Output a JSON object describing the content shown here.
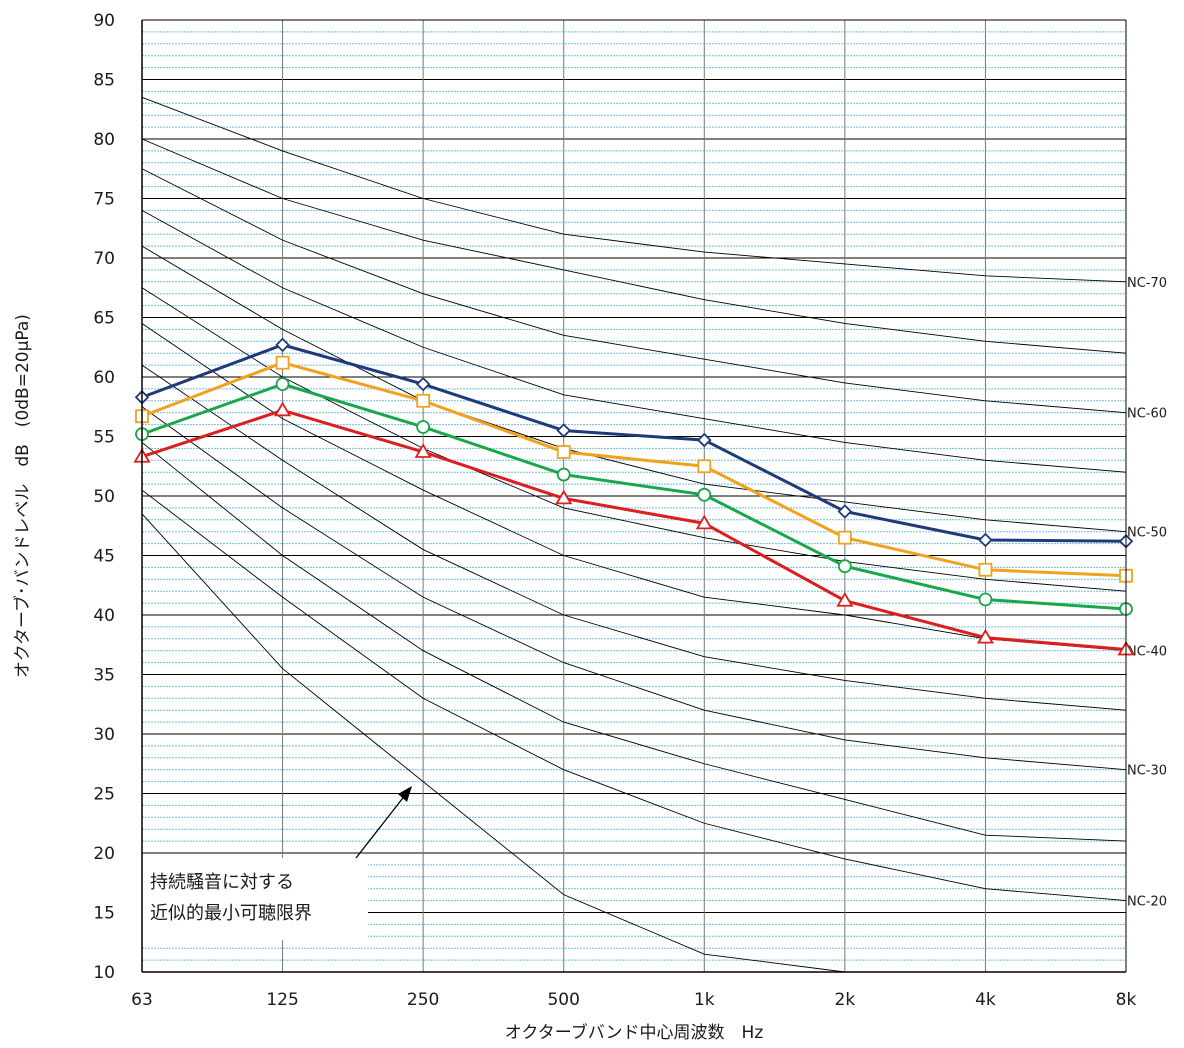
{
  "chart_data": {
    "type": "line",
    "xlabel": "オクターブバンド中心周波数　Hz",
    "ylabel": "オクターブ･バンドレベル　dB　(0dB=20μPa)",
    "categories": [
      "63",
      "125",
      "250",
      "500",
      "1k",
      "2k",
      "4k",
      "8k"
    ],
    "ylim": [
      10,
      90
    ],
    "yticks": [
      "10",
      "15",
      "20",
      "25",
      "30",
      "35",
      "40",
      "45",
      "50",
      "55",
      "60",
      "65",
      "70",
      "75",
      "80",
      "85",
      "90"
    ],
    "minor_grid_step": 1,
    "grid": true,
    "nc_curves": [
      {
        "label": "NC-70",
        "values": [
          83.5,
          79,
          75,
          72,
          70.5,
          69.5,
          68.5,
          68
        ]
      },
      {
        "label": "",
        "values": [
          80,
          75,
          71.5,
          69,
          66.5,
          64.5,
          63,
          62
        ]
      },
      {
        "label": "NC-60",
        "values": [
          77.5,
          71.5,
          67,
          63.5,
          61.5,
          59.5,
          58,
          57
        ]
      },
      {
        "label": "",
        "values": [
          74,
          67.5,
          62.5,
          58.5,
          56.5,
          54.5,
          53,
          52
        ]
      },
      {
        "label": "NC-50",
        "values": [
          71,
          64,
          58,
          54,
          51,
          49.5,
          48,
          47
        ]
      },
      {
        "label": "",
        "values": [
          67.5,
          60,
          54,
          49,
          46.5,
          44.5,
          43,
          42
        ]
      },
      {
        "label": "NC-40",
        "values": [
          64.5,
          56.5,
          50.5,
          45,
          41.5,
          40,
          38,
          37
        ]
      },
      {
        "label": "",
        "values": [
          61,
          53,
          45.5,
          40,
          36.5,
          34.5,
          33,
          32
        ]
      },
      {
        "label": "NC-30",
        "values": [
          57.5,
          49,
          41.5,
          36,
          32,
          29.5,
          28,
          27
        ]
      },
      {
        "label": "",
        "values": [
          54.5,
          45,
          37,
          31,
          27.5,
          24.5,
          21.5,
          21
        ]
      },
      {
        "label": "NC-20",
        "values": [
          50.5,
          41.5,
          33,
          27,
          22.5,
          19.5,
          17,
          16
        ]
      },
      {
        "label": "",
        "values": [
          48.5,
          35.5,
          26,
          16.5,
          11.5,
          10
        ]
      }
    ],
    "series": [
      {
        "marker": "diamond",
        "color": "#1f3a7a",
        "values": [
          58.3,
          62.7,
          59.4,
          55.5,
          54.7,
          48.7,
          46.3,
          46.2
        ]
      },
      {
        "marker": "square",
        "color": "#f0a21e",
        "values": [
          56.7,
          61.2,
          58,
          53.7,
          52.5,
          46.5,
          43.8,
          43.3
        ]
      },
      {
        "marker": "circle",
        "color": "#1aa64a",
        "values": [
          55.2,
          59.4,
          55.8,
          51.8,
          50.1,
          44.1,
          41.3,
          40.5
        ]
      },
      {
        "marker": "triangle",
        "color": "#dc1e1e",
        "values": [
          53.3,
          57.2,
          53.7,
          49.8,
          47.7,
          41.2,
          38.1,
          37.1
        ]
      }
    ],
    "annotation": {
      "lines": [
        "持続騒音に対する",
        "近似的最小可聴限界"
      ]
    }
  }
}
